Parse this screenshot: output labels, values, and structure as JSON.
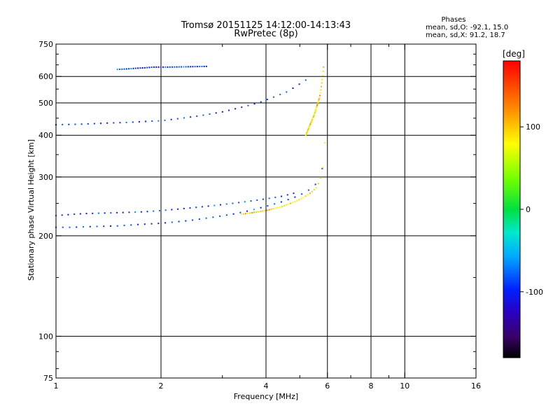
{
  "chart_data": {
    "type": "scatter",
    "title": "Tromsø 20151125 14:12:00-14:13:43",
    "subtitle": "RwPretec (8p)",
    "xlabel": "Frequency [MHz]",
    "ylabel": "Stationary phase Virtual Height [km]",
    "x_scale": "log",
    "y_scale": "log",
    "xlim": [
      1,
      16
    ],
    "ylim": [
      75,
      750
    ],
    "x_ticks": [
      1,
      2,
      4,
      6,
      8,
      10,
      16
    ],
    "x_tick_labels": [
      "1",
      "2",
      "4",
      "6",
      "8",
      "10",
      "16"
    ],
    "x_minor_ticks": [
      3,
      5,
      7,
      9
    ],
    "y_ticks": [
      75,
      100,
      200,
      300,
      400,
      500,
      600,
      750
    ],
    "y_tick_labels": [
      "75",
      "100",
      "200",
      "300",
      "400",
      "500",
      "600",
      "750"
    ],
    "y_minor_ticks": [
      80,
      90,
      150,
      250,
      350,
      450,
      550,
      650,
      700
    ],
    "grid": true,
    "grid_x": [
      2,
      4,
      6,
      8,
      10
    ],
    "grid_y": [
      100,
      200,
      300,
      400,
      500,
      600
    ],
    "colorbar": {
      "label": "[deg]",
      "range": [
        -180,
        180
      ],
      "ticks": [
        100,
        0,
        -100
      ],
      "tick_labels": [
        "100",
        "0",
        "-100"
      ],
      "colormap": "rainbow"
    },
    "stats": {
      "heading": "Phases",
      "line1": "mean, sd,O: -92.1, 15.0",
      "line2": "mean, sd,X:  91.2, 18.7"
    },
    "series": [
      {
        "mode": "O",
        "phase_mean": -92.1,
        "phase_sd": 15.0,
        "traces": [
          {
            "x": [
              1.0,
              1.1,
              1.25,
              1.5,
              1.7,
              2.0,
              2.4,
              2.8,
              3.2,
              3.6,
              4.0,
              4.4,
              4.8,
              5.2,
              5.5,
              5.65,
              5.75,
              5.8
            ],
            "y": [
              212,
              212,
              213,
              214,
              216,
              218,
              222,
              227,
              232,
              238,
              245,
              252,
              260,
              270,
              282,
              292,
              305,
              318
            ]
          },
          {
            "x": [
              1.0,
              1.2,
              1.4,
              1.6,
              1.8,
              2.0,
              2.3,
              2.6,
              3.0,
              3.4,
              3.8,
              4.2,
              4.6,
              4.8,
              5.0,
              5.2
            ],
            "y": [
              430,
              432,
              435,
              437,
              440,
              442,
              450,
              458,
              470,
              485,
              500,
              520,
              540,
              555,
              570,
              585
            ]
          },
          {
            "x": [
              1.5,
              1.6,
              1.7,
              1.8,
              1.9,
              2.1,
              2.3,
              2.5,
              2.7
            ],
            "y": [
              630,
              632,
              635,
              637,
              640,
              640,
              641,
              642,
              643
            ]
          },
          {
            "x": [
              1.0,
              1.2,
              1.4,
              1.6,
              1.8,
              2.0,
              2.2,
              2.4,
              2.6,
              2.8,
              3.0,
              3.2,
              3.4,
              3.6,
              3.8,
              4.0,
              4.2,
              4.4,
              4.6,
              4.8
            ],
            "y": [
              230,
              233,
              234,
              235,
              236,
              238,
              240,
              242,
              244,
              246,
              248,
              250,
              252,
              254,
              256,
              258,
              260,
              262,
              265,
              268
            ]
          }
        ]
      },
      {
        "mode": "X",
        "phase_mean": 91.2,
        "phase_sd": 18.7,
        "traces": [
          {
            "x": [
              3.4,
              3.6,
              3.8,
              4.0,
              4.2,
              4.4,
              4.6,
              4.8,
              5.0,
              5.2,
              5.4,
              5.6,
              5.7,
              5.8,
              5.85,
              5.9
            ],
            "y": [
              232,
              234,
              236,
              238,
              241,
              244,
              248,
              252,
              257,
              263,
              270,
              280,
              292,
              310,
              340,
              380
            ]
          },
          {
            "x": [
              5.2,
              5.35,
              5.5,
              5.6,
              5.7,
              5.75,
              5.8,
              5.85
            ],
            "y": [
              400,
              430,
              460,
              490,
              520,
              550,
              590,
              640
            ]
          }
        ]
      }
    ]
  }
}
